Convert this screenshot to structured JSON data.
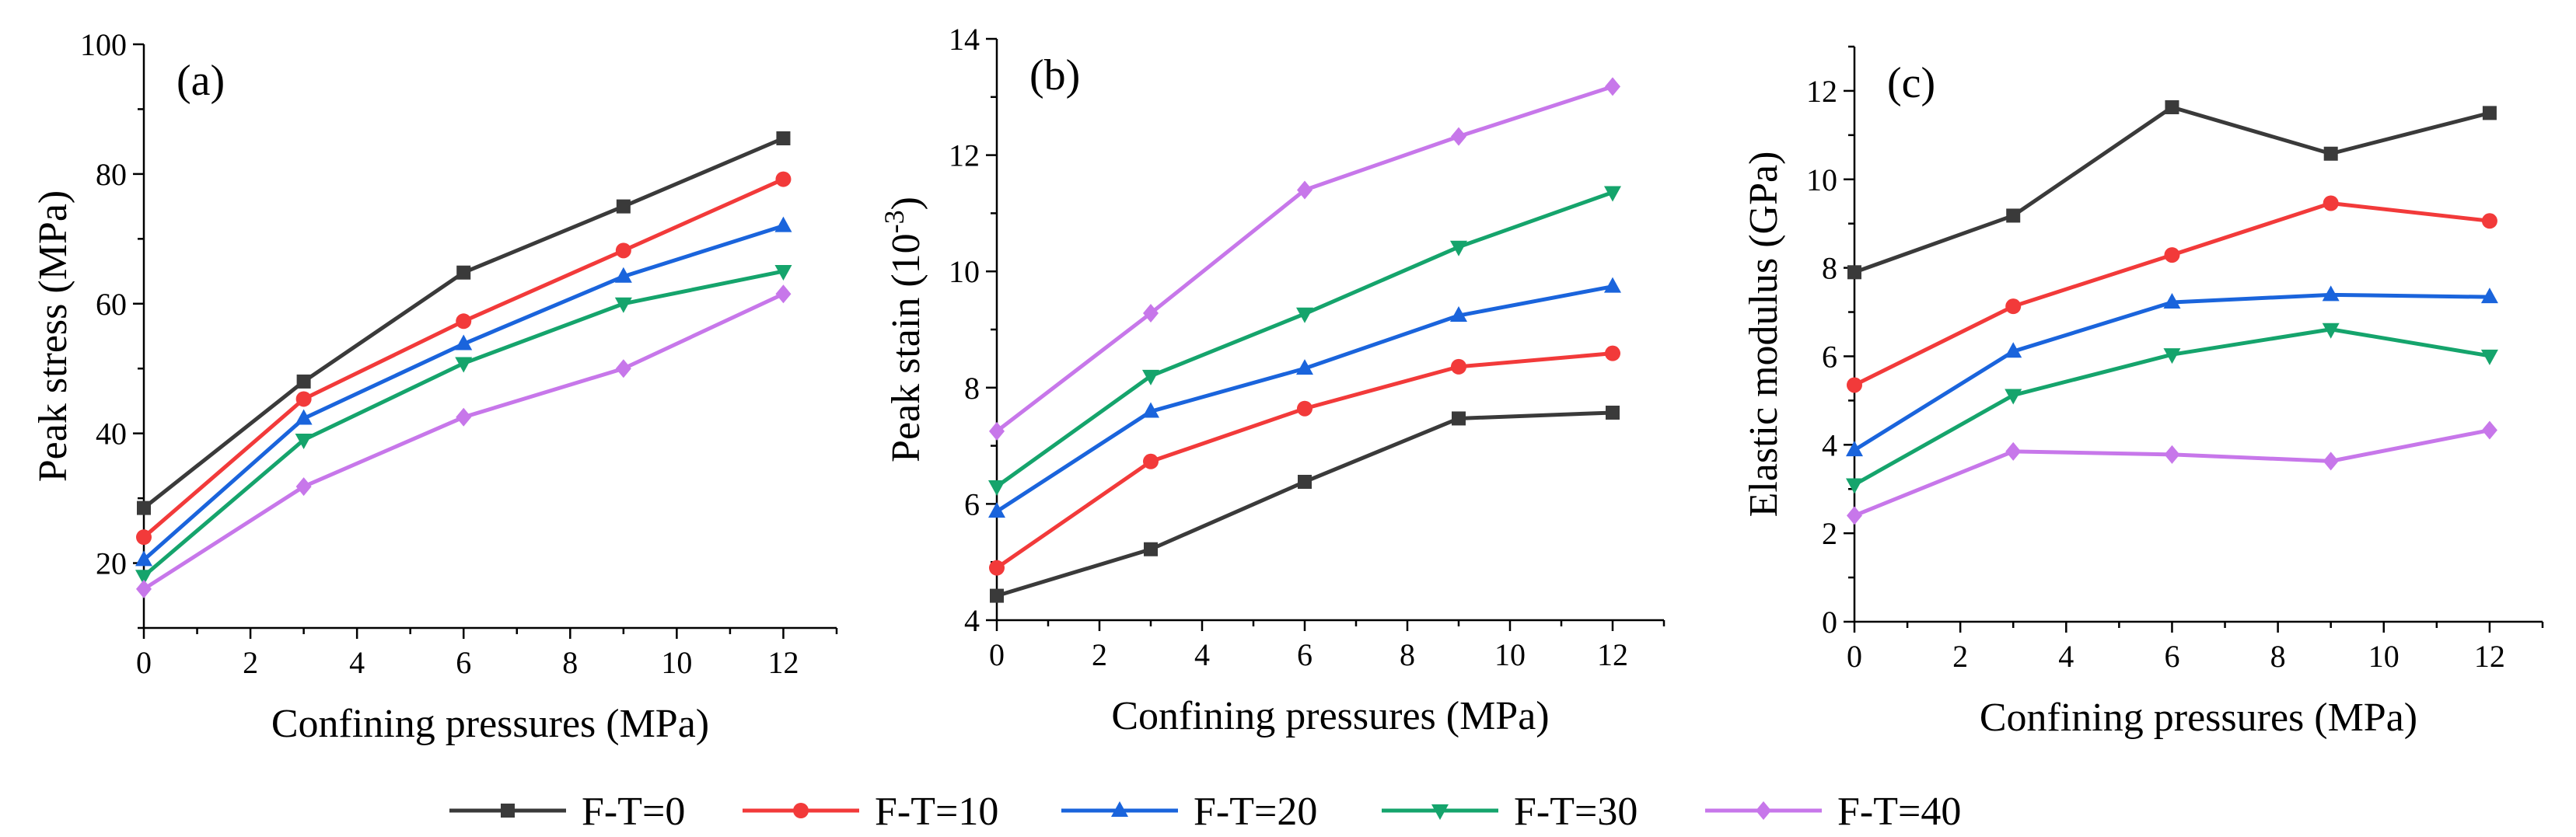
{
  "legend": [
    {
      "name": "F-T=0",
      "color": "#3a3a3a",
      "marker": "square"
    },
    {
      "name": "F-T=10",
      "color": "#f23a3a",
      "marker": "circle"
    },
    {
      "name": "F-T=20",
      "color": "#1a64dc",
      "marker": "triangle-up"
    },
    {
      "name": "F-T=30",
      "color": "#15a46c",
      "marker": "triangle-down"
    },
    {
      "name": "F-T=40",
      "color": "#c777ea",
      "marker": "diamond"
    }
  ],
  "chart_data": [
    {
      "type": "line",
      "panel_label": "(a)",
      "xlabel": "Confining pressures (MPa)",
      "ylabel": "Peak stress (MPa)",
      "xlim": [
        0,
        13
      ],
      "ylim": [
        10,
        100
      ],
      "xticks": [
        0,
        2,
        4,
        6,
        8,
        10,
        12
      ],
      "yticks": [
        20,
        40,
        60,
        80,
        100
      ],
      "x": [
        0,
        3,
        6,
        9,
        12
      ],
      "series": [
        {
          "name": "F-T=0",
          "values": [
            28.5,
            48.0,
            64.8,
            75.0,
            85.5
          ]
        },
        {
          "name": "F-T=10",
          "values": [
            24.0,
            45.3,
            57.3,
            68.2,
            79.2
          ]
        },
        {
          "name": "F-T=20",
          "values": [
            20.5,
            42.3,
            53.8,
            64.2,
            72.0
          ]
        },
        {
          "name": "F-T=30",
          "values": [
            18.0,
            39.0,
            50.8,
            60.0,
            65.0
          ]
        },
        {
          "name": "F-T=40",
          "values": [
            16.0,
            31.8,
            42.5,
            50.0,
            61.5
          ]
        }
      ]
    },
    {
      "type": "line",
      "panel_label": "(b)",
      "xlabel": "Confining pressures (MPa)",
      "ylabel": "Peak stain (10",
      "ylabel_sup": "-3",
      "ylabel_end": ")",
      "xlim": [
        0,
        13
      ],
      "ylim": [
        4,
        14
      ],
      "xticks": [
        0,
        2,
        4,
        6,
        8,
        10,
        12
      ],
      "yticks": [
        4,
        6,
        8,
        10,
        12,
        14
      ],
      "x": [
        0,
        3,
        6,
        9,
        12
      ],
      "series": [
        {
          "name": "F-T=0",
          "values": [
            4.42,
            5.22,
            6.38,
            7.47,
            7.57
          ]
        },
        {
          "name": "F-T=10",
          "values": [
            4.9,
            6.73,
            7.64,
            8.36,
            8.59
          ]
        },
        {
          "name": "F-T=20",
          "values": [
            5.87,
            7.59,
            8.33,
            9.24,
            9.74
          ]
        },
        {
          "name": "F-T=30",
          "values": [
            6.3,
            8.2,
            9.27,
            10.42,
            11.36
          ]
        },
        {
          "name": "F-T=40",
          "values": [
            7.25,
            9.28,
            11.4,
            12.32,
            13.18
          ]
        }
      ]
    },
    {
      "type": "line",
      "panel_label": "(c)",
      "xlabel": "Confining pressures (MPa)",
      "ylabel": "Elastic modulus (GPa)",
      "xlim": [
        0,
        13
      ],
      "ylim": [
        0,
        13
      ],
      "xticks": [
        0,
        2,
        4,
        6,
        8,
        10,
        12
      ],
      "yticks": [
        0,
        2,
        4,
        6,
        8,
        10,
        12
      ],
      "x": [
        0,
        3,
        6,
        9,
        12
      ],
      "series": [
        {
          "name": "F-T=0",
          "values": [
            7.9,
            9.18,
            11.63,
            10.58,
            11.5
          ]
        },
        {
          "name": "F-T=10",
          "values": [
            5.35,
            7.13,
            8.29,
            9.46,
            9.06
          ]
        },
        {
          "name": "F-T=20",
          "values": [
            3.88,
            6.11,
            7.22,
            7.39,
            7.34
          ]
        },
        {
          "name": "F-T=30",
          "values": [
            3.1,
            5.12,
            6.04,
            6.61,
            6.01
          ]
        },
        {
          "name": "F-T=40",
          "values": [
            2.4,
            3.85,
            3.78,
            3.63,
            4.33
          ]
        }
      ]
    }
  ]
}
